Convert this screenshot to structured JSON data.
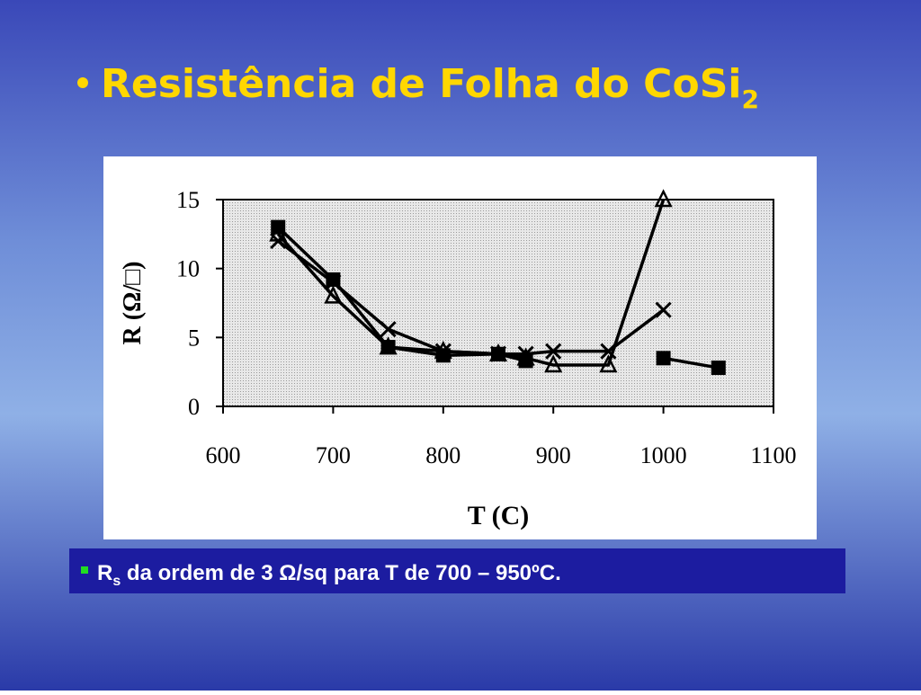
{
  "slide": {
    "title": "Resistência de Folha do CoSi",
    "title_subscript": "2",
    "note": {
      "symbol": "R",
      "subscript": "s",
      "text": " da ordem de 3 Ω/sq para T de 700 – 950ºC."
    }
  },
  "chart_data": {
    "type": "line",
    "x_label": "T (C)",
    "y_label": "R (Ω/□)",
    "x": [
      650,
      700,
      750,
      800,
      850,
      875,
      900,
      950,
      1000,
      1050
    ],
    "series": [
      {
        "color": "#000000",
        "marker": "square",
        "values": [
          13,
          9.2,
          4.3,
          3.7,
          3.8,
          3.3,
          null,
          null,
          3.5,
          2.8
        ]
      },
      {
        "color": "#000000",
        "marker": "triangle",
        "values": [
          12.5,
          8,
          4.3,
          4,
          3.8,
          3.5,
          3,
          3,
          15,
          null
        ]
      },
      {
        "color": "#000000",
        "marker": "x",
        "values": [
          12,
          9,
          5.6,
          4,
          3.8,
          3.8,
          4,
          4,
          7,
          null
        ]
      }
    ],
    "xlim": [
      600,
      1100
    ],
    "xticks": [
      600,
      700,
      800,
      900,
      1000,
      1100
    ],
    "ylim": [
      0,
      15
    ],
    "yticks": [
      0,
      5,
      10,
      15
    ],
    "grid": false
  }
}
